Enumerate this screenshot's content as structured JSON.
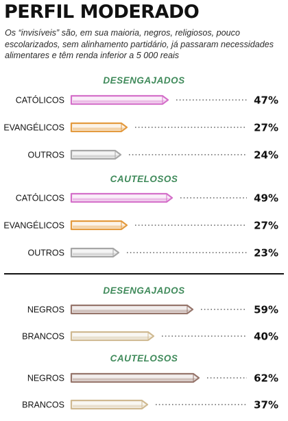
{
  "title": "PERFIL MODERADO",
  "subtitle": "Os “invisíveis” são, em sua maioria, negros, religiosos, pouco escolarizados, sem alinhamento partidário, já passaram necessidades alimentares e têm renda inferior a 5 000 reais",
  "colors": {
    "section_heading": "#3f8a5a",
    "CATÓLICOS": "#d46fc9",
    "EVANGÉLICOS": "#e39a3e",
    "OUTROS": "#a6a6a6",
    "NEGROS": "#96756b",
    "BRANCOS": "#cfb991"
  },
  "chart_data": [
    {
      "type": "bar",
      "title": "DESENGAJADOS",
      "categories": [
        "CATÓLICOS",
        "EVANGÉLICOS",
        "OUTROS"
      ],
      "values": [
        47,
        27,
        24
      ],
      "value_labels": [
        "47%",
        "27%",
        "24%"
      ],
      "unit": "%"
    },
    {
      "type": "bar",
      "title": "CAUTELOSOS",
      "categories": [
        "CATÓLICOS",
        "EVANGÉLICOS",
        "OUTROS"
      ],
      "values": [
        49,
        27,
        23
      ],
      "value_labels": [
        "49%",
        "27%",
        "23%"
      ],
      "unit": "%"
    },
    {
      "type": "bar",
      "title": "DESENGAJADOS",
      "categories": [
        "NEGROS",
        "BRANCOS"
      ],
      "values": [
        59,
        40
      ],
      "value_labels": [
        "59%",
        "40%"
      ],
      "unit": "%"
    },
    {
      "type": "bar",
      "title": "CAUTELOSOS",
      "categories": [
        "NEGROS",
        "BRANCOS"
      ],
      "values": [
        62,
        37
      ],
      "value_labels": [
        "62%",
        "37%"
      ],
      "unit": "%"
    }
  ]
}
